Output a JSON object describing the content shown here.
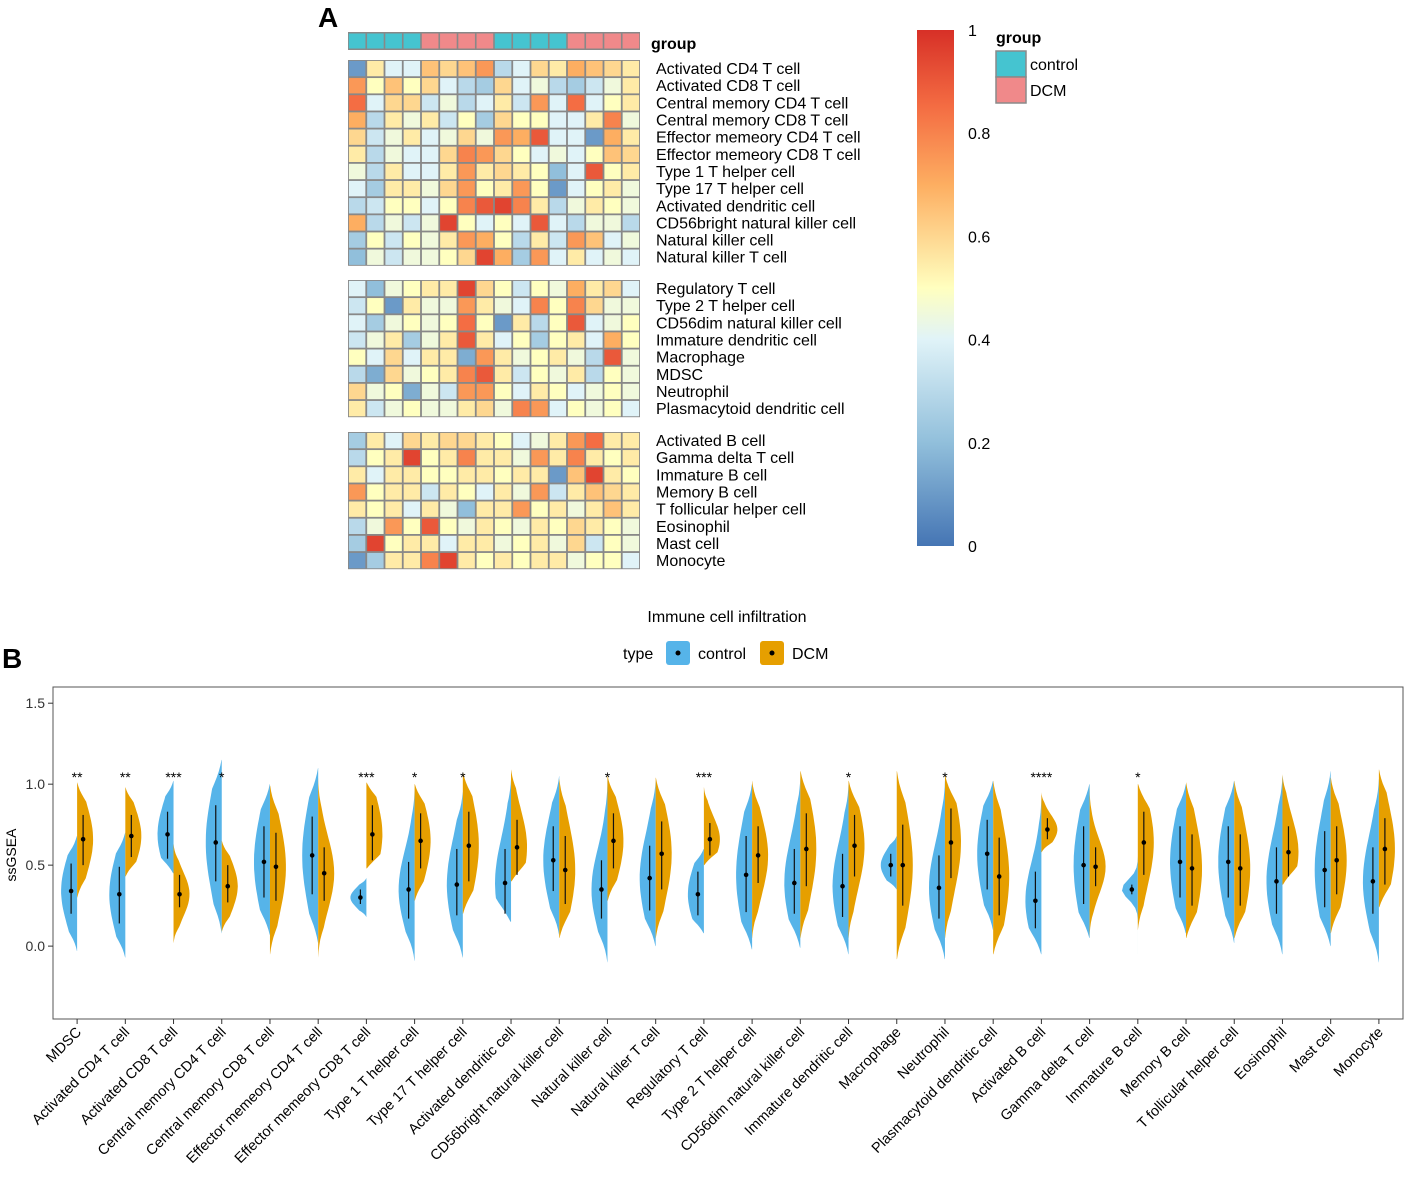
{
  "panels": {
    "a": "A",
    "b": "B"
  },
  "heatmap": {
    "annotation_title": "group",
    "group_legend_title": "group",
    "groups": [
      "control",
      "DCM"
    ],
    "group_colors": {
      "control": "#45C4D0",
      "DCM": "#F0898A"
    },
    "sample_groups": [
      "control",
      "control",
      "control",
      "control",
      "DCM",
      "DCM",
      "DCM",
      "DCM",
      "control",
      "control",
      "control",
      "control",
      "DCM",
      "DCM",
      "DCM",
      "DCM"
    ],
    "colorbar_ticks": [
      "1",
      "0.8",
      "0.6",
      "0.4",
      "0.2",
      "0"
    ],
    "blocks": [
      {
        "rows": [
          "Activated CD4 T cell",
          "Activated CD8 T cell",
          "Central memory CD4 T cell",
          "Central memory CD8 T cell",
          "Effector memeory CD4 T cell",
          "Effector memeory CD8 T cell",
          "Type 1 T helper cell",
          "Type 17 T helper cell",
          "Activated dendritic cell",
          "CD56bright natural killer cell",
          "Natural killer cell",
          "Natural killer T cell"
        ],
        "values": [
          [
            0.1,
            0.55,
            0.4,
            0.4,
            0.65,
            0.6,
            0.65,
            0.75,
            0.3,
            0.4,
            0.6,
            0.55,
            0.7,
            0.65,
            0.6,
            0.55
          ],
          [
            0.75,
            0.5,
            0.65,
            0.5,
            0.6,
            0.4,
            0.3,
            0.25,
            0.6,
            0.4,
            0.45,
            0.3,
            0.25,
            0.35,
            0.45,
            0.55
          ],
          [
            0.85,
            0.4,
            0.6,
            0.6,
            0.35,
            0.45,
            0.3,
            0.4,
            0.55,
            0.35,
            0.75,
            0.4,
            0.85,
            0.4,
            0.5,
            0.55
          ],
          [
            0.7,
            0.3,
            0.55,
            0.45,
            0.55,
            0.35,
            0.5,
            0.25,
            0.6,
            0.5,
            0.5,
            0.4,
            0.4,
            0.55,
            0.8,
            0.45
          ],
          [
            0.6,
            0.35,
            0.45,
            0.55,
            0.4,
            0.45,
            0.6,
            0.45,
            0.75,
            0.7,
            0.9,
            0.4,
            0.4,
            0.1,
            0.7,
            0.55
          ],
          [
            0.55,
            0.3,
            0.45,
            0.4,
            0.4,
            0.6,
            0.8,
            0.75,
            0.6,
            0.5,
            0.4,
            0.45,
            0.4,
            0.5,
            0.65,
            0.6
          ],
          [
            0.45,
            0.3,
            0.55,
            0.4,
            0.4,
            0.55,
            0.75,
            0.55,
            0.6,
            0.55,
            0.5,
            0.2,
            0.4,
            0.9,
            0.5,
            0.55
          ],
          [
            0.4,
            0.25,
            0.55,
            0.55,
            0.45,
            0.6,
            0.75,
            0.5,
            0.55,
            0.75,
            0.5,
            0.1,
            0.4,
            0.5,
            0.55,
            0.45
          ],
          [
            0.3,
            0.35,
            0.5,
            0.5,
            0.4,
            0.5,
            0.8,
            0.9,
            0.95,
            0.8,
            0.55,
            0.3,
            0.45,
            0.55,
            0.5,
            0.45
          ],
          [
            0.7,
            0.3,
            0.45,
            0.35,
            0.45,
            0.95,
            0.5,
            0.4,
            0.5,
            0.4,
            0.9,
            0.4,
            0.3,
            0.45,
            0.45,
            0.3
          ],
          [
            0.25,
            0.5,
            0.35,
            0.5,
            0.45,
            0.55,
            0.75,
            0.7,
            0.5,
            0.3,
            0.55,
            0.35,
            0.75,
            0.65,
            0.4,
            0.45
          ],
          [
            0.2,
            0.45,
            0.35,
            0.45,
            0.45,
            0.5,
            0.6,
            0.95,
            0.7,
            0.25,
            0.75,
            0.4,
            0.55,
            0.4,
            0.45,
            0.4
          ]
        ]
      },
      {
        "rows": [
          "Regulatory T cell",
          "Type 2 T helper cell",
          "CD56dim natural killer cell",
          "Immature dendritic cell",
          "Macrophage",
          "MDSC",
          "Neutrophil",
          "Plasmacytoid dendritic cell"
        ],
        "values": [
          [
            0.4,
            0.2,
            0.45,
            0.5,
            0.55,
            0.55,
            0.95,
            0.6,
            0.5,
            0.35,
            0.5,
            0.45,
            0.7,
            0.55,
            0.6,
            0.4
          ],
          [
            0.35,
            0.5,
            0.1,
            0.55,
            0.45,
            0.45,
            0.75,
            0.55,
            0.45,
            0.4,
            0.8,
            0.5,
            0.8,
            0.6,
            0.45,
            0.45
          ],
          [
            0.4,
            0.25,
            0.45,
            0.5,
            0.45,
            0.5,
            0.85,
            0.5,
            0.1,
            0.55,
            0.3,
            0.5,
            0.9,
            0.4,
            0.45,
            0.5
          ],
          [
            0.35,
            0.45,
            0.55,
            0.25,
            0.45,
            0.55,
            0.9,
            0.55,
            0.4,
            0.5,
            0.25,
            0.5,
            0.55,
            0.4,
            0.7,
            0.5
          ],
          [
            0.5,
            0.4,
            0.6,
            0.4,
            0.55,
            0.55,
            0.15,
            0.75,
            0.55,
            0.45,
            0.5,
            0.55,
            0.45,
            0.3,
            0.9,
            0.45
          ],
          [
            0.3,
            0.15,
            0.6,
            0.45,
            0.5,
            0.55,
            0.8,
            0.9,
            0.55,
            0.35,
            0.5,
            0.45,
            0.55,
            0.3,
            0.5,
            0.45
          ],
          [
            0.6,
            0.45,
            0.5,
            0.15,
            0.45,
            0.35,
            0.75,
            0.75,
            0.5,
            0.4,
            0.55,
            0.5,
            0.4,
            0.45,
            0.5,
            0.45
          ],
          [
            0.55,
            0.35,
            0.45,
            0.5,
            0.45,
            0.45,
            0.55,
            0.6,
            0.45,
            0.8,
            0.75,
            0.4,
            0.5,
            0.45,
            0.5,
            0.4
          ]
        ]
      },
      {
        "rows": [
          "Activated B cell",
          "Gamma delta T cell",
          "Immature B cell",
          "Memory B cell",
          "T follicular helper cell",
          "Eosinophil",
          "Mast cell",
          "Monocyte"
        ],
        "values": [
          [
            0.25,
            0.55,
            0.4,
            0.6,
            0.55,
            0.6,
            0.6,
            0.55,
            0.5,
            0.4,
            0.45,
            0.55,
            0.75,
            0.85,
            0.55,
            0.55
          ],
          [
            0.3,
            0.5,
            0.55,
            0.95,
            0.5,
            0.55,
            0.8,
            0.55,
            0.55,
            0.45,
            0.75,
            0.55,
            0.8,
            0.55,
            0.5,
            0.55
          ],
          [
            0.55,
            0.4,
            0.55,
            0.55,
            0.5,
            0.5,
            0.55,
            0.55,
            0.5,
            0.55,
            0.55,
            0.1,
            0.65,
            0.95,
            0.55,
            0.5
          ],
          [
            0.75,
            0.5,
            0.55,
            0.55,
            0.35,
            0.55,
            0.5,
            0.4,
            0.55,
            0.45,
            0.75,
            0.35,
            0.55,
            0.65,
            0.6,
            0.55
          ],
          [
            0.55,
            0.5,
            0.55,
            0.4,
            0.55,
            0.45,
            0.2,
            0.55,
            0.55,
            0.75,
            0.5,
            0.55,
            0.45,
            0.55,
            0.65,
            0.55
          ],
          [
            0.3,
            0.45,
            0.75,
            0.5,
            0.9,
            0.5,
            0.45,
            0.55,
            0.5,
            0.45,
            0.55,
            0.5,
            0.6,
            0.55,
            0.5,
            0.45
          ],
          [
            0.25,
            0.95,
            0.5,
            0.55,
            0.55,
            0.4,
            0.55,
            0.55,
            0.45,
            0.5,
            0.55,
            0.45,
            0.6,
            0.35,
            0.5,
            0.45
          ],
          [
            0.1,
            0.25,
            0.55,
            0.55,
            0.8,
            0.95,
            0.55,
            0.5,
            0.55,
            0.5,
            0.55,
            0.55,
            0.45,
            0.5,
            0.5,
            0.4
          ]
        ]
      }
    ]
  },
  "chart_data": {
    "type": "violin",
    "title": "Immune cell infiltration",
    "legend_title": "type",
    "series_names": [
      "control",
      "DCM"
    ],
    "series_colors": {
      "control": "#56B4E9",
      "DCM": "#E69F00"
    },
    "ylabel": "ssGSEA",
    "xlabel": "",
    "ylim": [
      -0.45,
      1.6
    ],
    "yticks": [
      "1.5",
      "1.0",
      "0.5",
      "0.0"
    ],
    "ytick_values": [
      1.5,
      1.0,
      0.5,
      0.0
    ],
    "categories": [
      "MDSC",
      "Activated CD4 T cell",
      "Activated CD8 T cell",
      "Central memory CD4 T cell",
      "Central memory CD8 T cell",
      "Effector memeory CD4 T cell",
      "Effector memeory CD8 T cell",
      "Type 1 T helper cell",
      "Type 17 T helper cell",
      "Activated dendritic cell",
      "CD56bright natural killer cell",
      "Natural killer cell",
      "Natural killer T cell",
      "Regulatory T cell",
      "Type 2 T helper cell",
      "CD56dim natural killer cell",
      "Immature dendritic cell",
      "Macrophage",
      "Neutrophil",
      "Plasmacytoid dendritic cell",
      "Activated B cell",
      "Gamma delta T cell",
      "Immature B cell",
      "Memory B cell",
      "T follicular helper cell",
      "Eosinophil",
      "Mast cell",
      "Monocyte"
    ],
    "significance": [
      "**",
      "**",
      "***",
      "*",
      "",
      "",
      "***",
      "*",
      "*",
      "",
      "",
      "*",
      "",
      "***",
      "",
      "",
      "*",
      "",
      "*",
      "",
      "****",
      "",
      "*",
      "",
      "",
      "",
      "",
      ""
    ],
    "control": {
      "mean": [
        0.34,
        0.32,
        0.69,
        0.64,
        0.52,
        0.56,
        0.3,
        0.35,
        0.38,
        0.39,
        0.53,
        0.35,
        0.42,
        0.32,
        0.44,
        0.39,
        0.37,
        0.5,
        0.36,
        0.57,
        0.28,
        0.5,
        0.35,
        0.52,
        0.52,
        0.4,
        0.47,
        0.4
      ],
      "lo": [
        0.2,
        0.14,
        0.54,
        0.4,
        0.3,
        0.32,
        0.26,
        0.17,
        0.19,
        0.2,
        0.34,
        0.17,
        0.22,
        0.19,
        0.21,
        0.2,
        0.18,
        0.43,
        0.17,
        0.35,
        0.11,
        0.26,
        0.32,
        0.3,
        0.3,
        0.2,
        0.24,
        0.2
      ],
      "hi": [
        0.51,
        0.49,
        0.83,
        0.87,
        0.74,
        0.8,
        0.35,
        0.52,
        0.6,
        0.6,
        0.74,
        0.53,
        0.62,
        0.46,
        0.68,
        0.6,
        0.57,
        0.57,
        0.56,
        0.78,
        0.46,
        0.74,
        0.38,
        0.74,
        0.74,
        0.61,
        0.71,
        0.61
      ],
      "min": [
        -0.03,
        -0.07,
        0.45,
        0.08,
        0.07,
        0.02,
        0.18,
        -0.09,
        -0.07,
        0.15,
        0.07,
        -0.1,
        0.0,
        0.08,
        -0.02,
        -0.01,
        -0.05,
        0.35,
        -0.08,
        0.1,
        -0.05,
        0.05,
        -0.05,
        0.08,
        0.02,
        -0.05,
        0.0,
        -0.1
      ],
      "max": [
        0.68,
        0.7,
        1.02,
        1.15,
        1.0,
        1.1,
        0.42,
        0.98,
        0.95,
        1.03,
        1.05,
        1.03,
        1.02,
        0.6,
        1.0,
        1.04,
        1.0,
        0.68,
        1.02,
        1.02,
        0.92,
        1.0,
        1.02,
        1.0,
        1.02,
        1.05,
        1.08,
        1.03
      ]
    },
    "DCM": {
      "mean": [
        0.66,
        0.68,
        0.32,
        0.37,
        0.49,
        0.45,
        0.69,
        0.65,
        0.62,
        0.61,
        0.47,
        0.65,
        0.57,
        0.66,
        0.56,
        0.6,
        0.62,
        0.5,
        0.64,
        0.43,
        0.72,
        0.49,
        0.64,
        0.48,
        0.48,
        0.58,
        0.53,
        0.6
      ],
      "lo": [
        0.5,
        0.55,
        0.24,
        0.27,
        0.28,
        0.28,
        0.53,
        0.48,
        0.4,
        0.44,
        0.26,
        0.48,
        0.35,
        0.56,
        0.39,
        0.37,
        0.43,
        0.25,
        0.42,
        0.19,
        0.66,
        0.37,
        0.44,
        0.25,
        0.25,
        0.43,
        0.32,
        0.38
      ],
      "hi": [
        0.81,
        0.81,
        0.44,
        0.5,
        0.7,
        0.61,
        0.87,
        0.82,
        0.83,
        0.78,
        0.68,
        0.82,
        0.77,
        0.76,
        0.74,
        0.82,
        0.81,
        0.75,
        0.85,
        0.67,
        0.79,
        0.61,
        0.83,
        0.69,
        0.69,
        0.74,
        0.74,
        0.79
      ]
    },
    "DCM_range": {
      "min": [
        0.3,
        0.43,
        0.02,
        0.09,
        -0.05,
        -0.07,
        0.48,
        0.28,
        0.2,
        0.4,
        0.05,
        0.28,
        0.05,
        0.5,
        0.05,
        0.05,
        0.05,
        -0.08,
        0.05,
        -0.05,
        0.58,
        0.05,
        0.1,
        0.05,
        0.05,
        0.38,
        0.08,
        0.24
      ],
      "max": [
        1.01,
        0.98,
        0.63,
        0.65,
        0.99,
        1.04,
        1.01,
        1.0,
        1.07,
        1.09,
        1.03,
        1.05,
        1.04,
        0.98,
        1.02,
        1.08,
        1.02,
        1.08,
        1.05,
        1.02,
        0.95,
        1.0,
        1.0,
        1.01,
        1.02,
        1.06,
        1.04,
        1.09
      ]
    }
  }
}
